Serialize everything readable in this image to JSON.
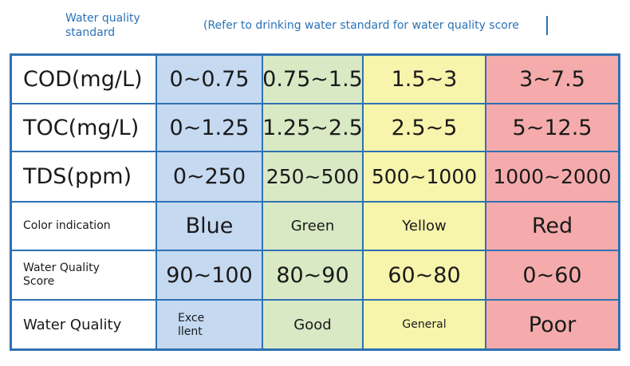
{
  "header": {
    "title": "Water quality standard",
    "note": "(Refer to drinking water standard for water quality score"
  },
  "colors": {
    "border": "#2f71b3",
    "blue": "#c5d9f1",
    "green": "#d8e9c4",
    "yellow": "#f7f4ac",
    "red": "#f5abab",
    "header_text": "#2a73b6"
  },
  "table": {
    "rows": [
      {
        "label": "COD(mg/L)",
        "cells": [
          "0~0.75",
          "0.75~1.5",
          "1.5~3",
          "3~7.5"
        ]
      },
      {
        "label": "TOC(mg/L)",
        "cells": [
          "0~1.25",
          "1.25~2.5",
          "2.5~5",
          "5~12.5"
        ]
      },
      {
        "label": "TDS(ppm)",
        "cells": [
          "0~250",
          "250~500",
          "500~1000",
          "1000~2000"
        ]
      },
      {
        "label": "Color indication",
        "cells": [
          "Blue",
          "Green",
          "Yellow",
          "Red"
        ]
      },
      {
        "label": "Water Quality Score",
        "cells": [
          "90~100",
          "80~90",
          "60~80",
          "0~60"
        ]
      },
      {
        "label": "Water Quality",
        "cells": [
          "Excellent",
          "Good",
          "General",
          "Poor"
        ]
      }
    ]
  }
}
